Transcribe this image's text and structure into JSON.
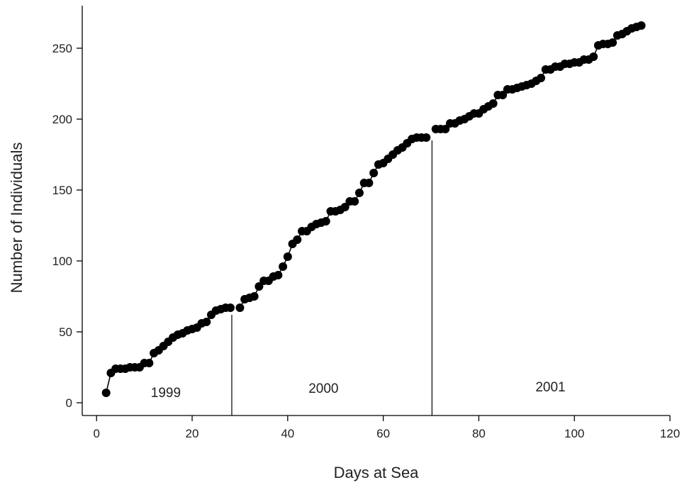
{
  "chart_data": {
    "type": "scatter",
    "title": "",
    "xlabel": "Days at Sea",
    "ylabel": "Number of Individuals",
    "xlim": [
      -3,
      120
    ],
    "ylim": [
      -9,
      280
    ],
    "xticks": [
      0,
      20,
      40,
      60,
      80,
      100,
      120
    ],
    "yticks": [
      0,
      50,
      100,
      150,
      200,
      250
    ],
    "grid": false,
    "legend": "none",
    "marker_color": "#000000",
    "dividers": [
      {
        "x": 28.3,
        "y_top": 62
      },
      {
        "x": 70.2,
        "y_top": 185
      }
    ],
    "annotations": [
      {
        "text": "1999",
        "x": 14.5,
        "y": 4
      },
      {
        "text": "2000",
        "x": 47.5,
        "y": 7
      },
      {
        "text": "2001",
        "x": 95,
        "y": 8
      }
    ],
    "segments": [
      {
        "x": [
          2,
          3,
          4,
          5,
          6,
          7,
          8,
          9,
          10,
          11,
          12,
          13,
          14,
          15,
          16,
          17,
          18,
          19,
          20,
          21,
          22,
          23,
          24,
          25,
          26,
          27,
          28
        ],
        "y": [
          7,
          21,
          24,
          24,
          24,
          25,
          25,
          25,
          28,
          28,
          35,
          37,
          40,
          43,
          46,
          48,
          49,
          51,
          52,
          53,
          56,
          57,
          62,
          65,
          66,
          67,
          67
        ]
      },
      {
        "x": [
          30,
          31,
          32,
          33,
          34,
          35,
          36,
          37,
          38,
          39,
          40,
          41,
          42,
          43,
          44,
          45,
          46,
          47,
          48,
          49,
          50,
          51,
          52,
          53,
          54,
          55,
          56,
          57,
          58,
          59,
          60,
          61,
          62,
          63,
          64,
          65,
          66,
          67,
          68,
          69
        ],
        "y": [
          67,
          73,
          74,
          75,
          82,
          86,
          86,
          89,
          90,
          96,
          103,
          112,
          115,
          121,
          121,
          124,
          126,
          127,
          128,
          135,
          135,
          136,
          138,
          142,
          142,
          148,
          155,
          155,
          162,
          168,
          169,
          172,
          175,
          178,
          180,
          183,
          186,
          187,
          187,
          187
        ]
      },
      {
        "x": [
          71,
          72,
          73,
          74,
          75,
          76,
          77,
          78,
          79,
          80,
          81,
          82,
          83,
          84,
          85,
          86,
          87,
          88,
          89,
          90,
          91,
          92,
          93,
          94,
          95,
          96,
          97,
          98,
          99,
          100,
          101,
          102,
          103,
          104,
          105,
          106,
          107,
          108,
          109,
          110,
          111,
          112,
          113,
          114
        ],
        "y": [
          193,
          193,
          193,
          197,
          197,
          199,
          200,
          202,
          204,
          204,
          207,
          209,
          211,
          217,
          217,
          221,
          221,
          222,
          223,
          224,
          225,
          227,
          229,
          235,
          235,
          237,
          237,
          239,
          239,
          240,
          240,
          242,
          242,
          244,
          252,
          253,
          253,
          254,
          259,
          260,
          262,
          264,
          265,
          266
        ]
      }
    ]
  }
}
